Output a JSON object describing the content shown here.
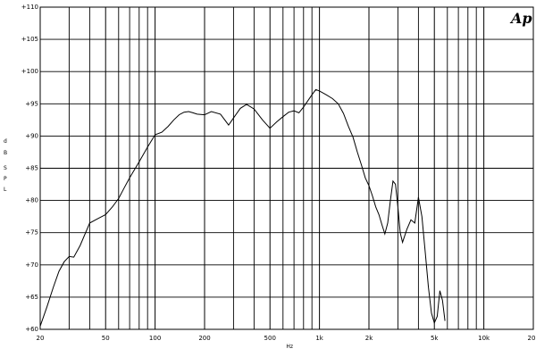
{
  "chart_data": {
    "type": "line",
    "logo": "Ap",
    "xlabel": "Hz",
    "ylabel": "d B S P L",
    "ylabel_chars": [
      "d",
      "B",
      "S",
      "P",
      "L"
    ],
    "xscale": "log",
    "xlim": [
      20,
      20000
    ],
    "ylim": [
      60,
      110
    ],
    "grid": true,
    "x_tick_labels": [
      {
        "x": 20,
        "label": "20"
      },
      {
        "x": 50,
        "label": "50"
      },
      {
        "x": 100,
        "label": "100"
      },
      {
        "x": 200,
        "label": "200"
      },
      {
        "x": 500,
        "label": "500"
      },
      {
        "x": 1000,
        "label": "1k"
      },
      {
        "x": 2000,
        "label": "2k"
      },
      {
        "x": 5000,
        "label": "5k"
      },
      {
        "x": 10000,
        "label": "10k"
      },
      {
        "x": 20000,
        "label": "20k"
      }
    ],
    "y_tick_labels": [
      {
        "y": 110,
        "label": "+110"
      },
      {
        "y": 105,
        "label": "+105"
      },
      {
        "y": 100,
        "label": "+100"
      },
      {
        "y": 95,
        "label": "+95"
      },
      {
        "y": 90,
        "label": "+90"
      },
      {
        "y": 85,
        "label": "+85"
      },
      {
        "y": 80,
        "label": "+80"
      },
      {
        "y": 75,
        "label": "+75"
      },
      {
        "y": 70,
        "label": "+70"
      },
      {
        "y": 65,
        "label": "+65"
      },
      {
        "y": 60,
        "label": "+60"
      }
    ],
    "series": [
      {
        "x": [
          20,
          22,
          24,
          26,
          28,
          30,
          32,
          35,
          40,
          45,
          50,
          55,
          60,
          65,
          70,
          80,
          90,
          100,
          110,
          120,
          130,
          140,
          150,
          160,
          170,
          180,
          200,
          220,
          250,
          280,
          300,
          330,
          360,
          400,
          450,
          500,
          550,
          600,
          650,
          700,
          750,
          800,
          900,
          950,
          1000,
          1100,
          1200,
          1300,
          1400,
          1500,
          1600,
          1700,
          1800,
          1900,
          2000,
          2100,
          2200,
          2300,
          2400,
          2500,
          2600,
          2700,
          2800,
          2900,
          3000,
          3100,
          3200,
          3400,
          3600,
          3800,
          4000,
          4200,
          4400,
          4600,
          4800,
          5000,
          5200,
          5400,
          5600,
          5800
        ],
        "y": [
          60.5,
          63.5,
          66.5,
          69,
          70.5,
          71.3,
          71.2,
          73,
          76.5,
          77.2,
          77.8,
          79,
          80.3,
          82,
          83.5,
          86,
          88.3,
          90.2,
          90.6,
          91.5,
          92.5,
          93.3,
          93.7,
          93.8,
          93.6,
          93.4,
          93.3,
          93.8,
          93.4,
          91.7,
          92.8,
          94.3,
          94.9,
          94.2,
          92.5,
          91.2,
          92.2,
          93,
          93.7,
          93.9,
          93.6,
          94.5,
          96.4,
          97.2,
          97,
          96.4,
          95.8,
          95,
          93.5,
          91.5,
          89.8,
          87.5,
          85.5,
          83.5,
          82.3,
          80.7,
          79,
          77.8,
          76.2,
          74.8,
          76.5,
          80,
          83,
          82.5,
          79,
          75,
          73.5,
          75.5,
          77,
          76.5,
          80.5,
          77.5,
          72,
          66.5,
          62.5,
          61,
          62,
          66,
          64.5,
          61.3
        ]
      }
    ]
  }
}
